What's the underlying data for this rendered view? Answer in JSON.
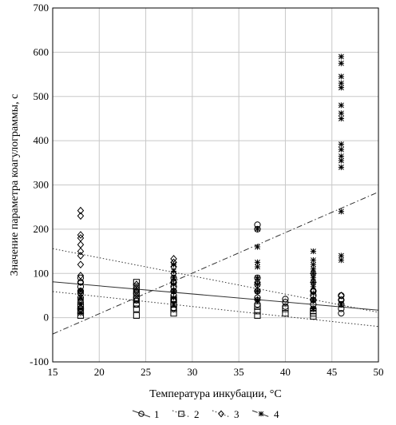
{
  "chart_data": {
    "type": "scatter",
    "title": "",
    "xlabel": "Температура инкубации, °С",
    "ylabel": "Значение параметра коагулограммы, с",
    "xlim": [
      15,
      50
    ],
    "ylim": [
      -100,
      700
    ],
    "xticks": [
      "15",
      "20",
      "25",
      "30",
      "35",
      "40",
      "45",
      "50"
    ],
    "yticks": [
      "-100",
      "0",
      "100",
      "200",
      "300",
      "400",
      "500",
      "600",
      "700"
    ],
    "grid": true,
    "legend_position": "bottom",
    "series": [
      {
        "name": "1",
        "marker": "circle",
        "points": [
          [
            18,
            20
          ],
          [
            18,
            35
          ],
          [
            18,
            45
          ],
          [
            18,
            55
          ],
          [
            18,
            60
          ],
          [
            18,
            70
          ],
          [
            18,
            80
          ],
          [
            18,
            90
          ],
          [
            24,
            30
          ],
          [
            24,
            45
          ],
          [
            24,
            55
          ],
          [
            24,
            65
          ],
          [
            28,
            40
          ],
          [
            28,
            50
          ],
          [
            28,
            60
          ],
          [
            28,
            70
          ],
          [
            28,
            80
          ],
          [
            28,
            90
          ],
          [
            37,
            30
          ],
          [
            37,
            45
          ],
          [
            37,
            60
          ],
          [
            37,
            75
          ],
          [
            37,
            90
          ],
          [
            37,
            200
          ],
          [
            37,
            210
          ],
          [
            40,
            25
          ],
          [
            40,
            35
          ],
          [
            40,
            42
          ],
          [
            43,
            20
          ],
          [
            43,
            30
          ],
          [
            43,
            40
          ],
          [
            43,
            50
          ],
          [
            43,
            60
          ],
          [
            46,
            10
          ],
          [
            46,
            20
          ],
          [
            46,
            30
          ],
          [
            46,
            40
          ],
          [
            46,
            50
          ]
        ],
        "trend": [
          [
            15,
            81
          ],
          [
            50,
            17
          ]
        ],
        "line_style": "solid"
      },
      {
        "name": "2",
        "marker": "square",
        "points": [
          [
            18,
            5
          ],
          [
            18,
            15
          ],
          [
            18,
            25
          ],
          [
            24,
            5
          ],
          [
            24,
            20
          ],
          [
            24,
            30
          ],
          [
            24,
            40
          ],
          [
            24,
            50
          ],
          [
            24,
            60
          ],
          [
            24,
            70
          ],
          [
            24,
            80
          ],
          [
            28,
            10
          ],
          [
            28,
            20
          ],
          [
            28,
            30
          ],
          [
            28,
            40
          ],
          [
            37,
            5
          ],
          [
            37,
            15
          ],
          [
            37,
            25
          ],
          [
            40,
            10
          ],
          [
            40,
            20
          ],
          [
            43,
            3
          ],
          [
            43,
            10
          ],
          [
            43,
            15
          ]
        ],
        "trend": [
          [
            15,
            59
          ],
          [
            50,
            -20
          ]
        ],
        "line_style": "dotted"
      },
      {
        "name": "3",
        "marker": "diamond",
        "points": [
          [
            18,
            40
          ],
          [
            18,
            60
          ],
          [
            18,
            80
          ],
          [
            18,
            95
          ],
          [
            18,
            120
          ],
          [
            18,
            140
          ],
          [
            18,
            150
          ],
          [
            18,
            165
          ],
          [
            18,
            180
          ],
          [
            18,
            187
          ],
          [
            18,
            230
          ],
          [
            18,
            242
          ],
          [
            24,
            40
          ],
          [
            24,
            60
          ],
          [
            24,
            75
          ],
          [
            28,
            20
          ],
          [
            28,
            40
          ],
          [
            28,
            60
          ],
          [
            28,
            80
          ],
          [
            28,
            100
          ],
          [
            28,
            115
          ],
          [
            28,
            125
          ],
          [
            28,
            133
          ],
          [
            37,
            40
          ],
          [
            37,
            60
          ],
          [
            37,
            80
          ],
          [
            43,
            40
          ],
          [
            43,
            60
          ],
          [
            43,
            80
          ],
          [
            43,
            100
          ],
          [
            46,
            40
          ],
          [
            46,
            50
          ]
        ],
        "trend": [
          [
            15,
            156
          ],
          [
            50,
            12
          ]
        ],
        "line_style": "dotted"
      },
      {
        "name": "4",
        "marker": "asterisk",
        "points": [
          [
            18,
            10
          ],
          [
            18,
            20
          ],
          [
            18,
            30
          ],
          [
            18,
            45
          ],
          [
            18,
            60
          ],
          [
            28,
            30
          ],
          [
            28,
            45
          ],
          [
            28,
            60
          ],
          [
            28,
            75
          ],
          [
            28,
            90
          ],
          [
            28,
            105
          ],
          [
            28,
            120
          ],
          [
            37,
            40
          ],
          [
            37,
            60
          ],
          [
            37,
            75
          ],
          [
            37,
            90
          ],
          [
            37,
            115
          ],
          [
            37,
            125
          ],
          [
            37,
            160
          ],
          [
            37,
            200
          ],
          [
            43,
            20
          ],
          [
            43,
            40
          ],
          [
            43,
            55
          ],
          [
            43,
            70
          ],
          [
            43,
            80
          ],
          [
            43,
            90
          ],
          [
            43,
            100
          ],
          [
            43,
            110
          ],
          [
            43,
            120
          ],
          [
            43,
            130
          ],
          [
            43,
            150
          ],
          [
            46,
            30
          ],
          [
            46,
            130
          ],
          [
            46,
            140
          ],
          [
            46,
            240
          ],
          [
            46,
            340
          ],
          [
            46,
            355
          ],
          [
            46,
            365
          ],
          [
            46,
            380
          ],
          [
            46,
            392
          ],
          [
            46,
            450
          ],
          [
            46,
            462
          ],
          [
            46,
            480
          ],
          [
            46,
            520
          ],
          [
            46,
            530
          ],
          [
            46,
            545
          ],
          [
            46,
            575
          ],
          [
            46,
            590
          ]
        ],
        "trend": [
          [
            15,
            -37
          ],
          [
            50,
            284
          ]
        ],
        "line_style": "dashdot"
      }
    ]
  }
}
